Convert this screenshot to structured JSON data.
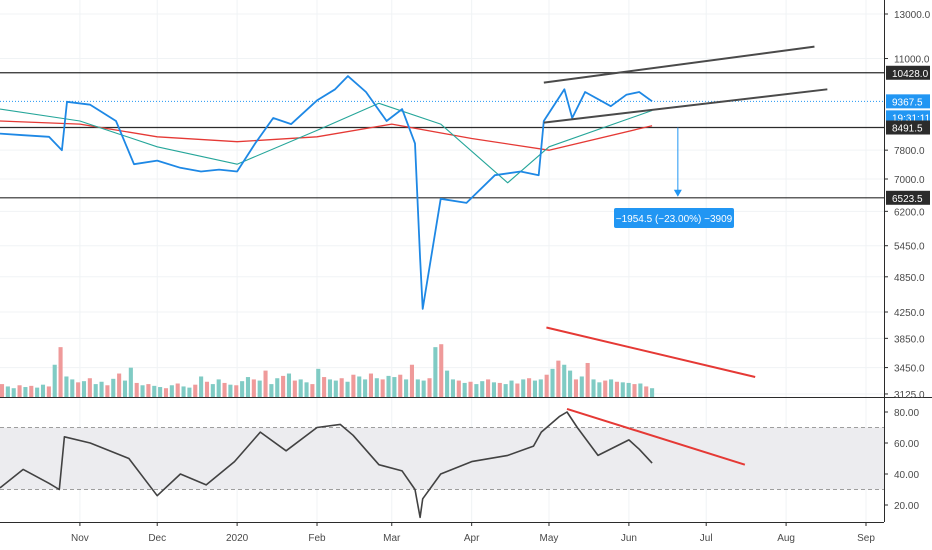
{
  "chart_data": [
    {
      "type": "line",
      "title": "",
      "price_axis": {
        "scale": "log",
        "tick_labels": [
          "13000.0",
          "11000.0",
          "9367.5",
          "8491.5",
          "7800.0",
          "7000.0",
          "6523.5",
          "6200.0",
          "5450.0",
          "4850.0",
          "4250.0",
          "3850.0",
          "3450.0",
          "3125.0"
        ],
        "ticks": [
          13000,
          11000,
          7800,
          7000,
          6200,
          5450,
          4850,
          4250,
          3850,
          3450,
          3125
        ],
        "range": [
          3125,
          13500
        ]
      },
      "time_axis": {
        "labels": [
          "Nov",
          "Dec",
          "2020",
          "Feb",
          "Mar",
          "Apr",
          "May",
          "Jun",
          "Jul",
          "Aug",
          "Sep"
        ]
      },
      "price_tags": {
        "resistance": "10428.0",
        "last": "9367.5",
        "countdown": "19:31:11",
        "support_mid": "8491.5",
        "support_low": "6523.5"
      },
      "horizontal_levels": [
        10428.0,
        8491.5,
        6523.5
      ],
      "series": [
        {
          "role": "price",
          "color": "#1e88e5",
          "x": [
            "2019-10-01",
            "2019-10-10",
            "2019-10-20",
            "2019-10-25",
            "2019-10-27",
            "2019-11-05",
            "2019-11-15",
            "2019-11-22",
            "2019-12-01",
            "2019-12-10",
            "2019-12-18",
            "2019-12-25",
            "2020-01-01",
            "2020-01-08",
            "2020-01-15",
            "2020-01-22",
            "2020-02-01",
            "2020-02-08",
            "2020-02-13",
            "2020-02-20",
            "2020-02-28",
            "2020-03-05",
            "2020-03-10",
            "2020-03-12",
            "2020-03-13",
            "2020-03-20",
            "2020-03-30",
            "2020-04-10",
            "2020-04-20",
            "2020-04-27",
            "2020-04-29",
            "2020-05-07",
            "2020-05-10",
            "2020-05-15",
            "2020-05-25",
            "2020-05-31",
            "2020-06-05",
            "2020-06-10"
          ],
          "values": [
            8300,
            8250,
            8200,
            7800,
            9350,
            9250,
            8700,
            7400,
            7500,
            7300,
            7200,
            7250,
            7200,
            8000,
            8800,
            8600,
            9400,
            9800,
            10300,
            9700,
            8700,
            9100,
            8000,
            5200,
            4300,
            6500,
            6400,
            7100,
            7200,
            7100,
            8700,
            9800,
            8800,
            9700,
            9200,
            9600,
            9700,
            9367.5
          ]
        },
        {
          "role": "moving-average-short",
          "color": "#26a69a",
          "x": [
            "2019-10-01",
            "2019-11-01",
            "2019-12-01",
            "2020-01-01",
            "2020-02-01",
            "2020-02-25",
            "2020-03-20",
            "2020-04-15",
            "2020-05-01",
            "2020-06-10"
          ],
          "values": [
            9100,
            8700,
            7900,
            7400,
            8400,
            9300,
            8600,
            6900,
            7900,
            9050
          ]
        },
        {
          "role": "moving-average-long",
          "color": "#e53935",
          "x": [
            "2019-10-01",
            "2019-11-01",
            "2019-12-01",
            "2020-01-01",
            "2020-02-01",
            "2020-03-01",
            "2020-04-01",
            "2020-05-01",
            "2020-06-10"
          ],
          "values": [
            8700,
            8600,
            8200,
            8050,
            8200,
            8600,
            8150,
            7800,
            8550
          ]
        }
      ],
      "volume": {
        "axis_top": 3850,
        "values": [
          0.22,
          0.18,
          0.15,
          0.2,
          0.17,
          0.19,
          0.16,
          0.21,
          0.18,
          0.55,
          0.85,
          0.35,
          0.3,
          0.25,
          0.27,
          0.32,
          0.22,
          0.26,
          0.2,
          0.31,
          0.4,
          0.28,
          0.5,
          0.24,
          0.2,
          0.22,
          0.19,
          0.17,
          0.15,
          0.2,
          0.23,
          0.18,
          0.16,
          0.21,
          0.35,
          0.26,
          0.22,
          0.3,
          0.24,
          0.21,
          0.2,
          0.27,
          0.34,
          0.3,
          0.28,
          0.45,
          0.22,
          0.32,
          0.36,
          0.4,
          0.28,
          0.3,
          0.25,
          0.22,
          0.48,
          0.34,
          0.3,
          0.28,
          0.32,
          0.26,
          0.38,
          0.35,
          0.3,
          0.4,
          0.32,
          0.3,
          0.36,
          0.34,
          0.38,
          0.3,
          0.55,
          0.3,
          0.28,
          0.32,
          0.85,
          0.9,
          0.45,
          0.3,
          0.28,
          0.24,
          0.26,
          0.22,
          0.27,
          0.3,
          0.25,
          0.24,
          0.22,
          0.28,
          0.23,
          0.3,
          0.32,
          0.28,
          0.3,
          0.38,
          0.48,
          0.62,
          0.55,
          0.45,
          0.3,
          0.35,
          0.58,
          0.3,
          0.25,
          0.28,
          0.3,
          0.26,
          0.25,
          0.24,
          0.22,
          0.23,
          0.18,
          0.15
        ]
      }
    },
    {
      "type": "line",
      "title": "",
      "oscillator_axis": {
        "tick_labels": [
          "80.00",
          "60.00",
          "40.00",
          "20.00"
        ],
        "ticks": [
          80,
          60,
          40,
          20
        ],
        "range": [
          12,
          88
        ],
        "band": [
          30,
          70
        ]
      },
      "series": [
        {
          "role": "oscillator",
          "color": "#424242",
          "x": [
            "2019-10-01",
            "2019-10-10",
            "2019-10-20",
            "2019-10-24",
            "2019-10-26",
            "2019-11-05",
            "2019-11-20",
            "2019-12-01",
            "2019-12-10",
            "2019-12-20",
            "2019-12-31",
            "2020-01-10",
            "2020-01-20",
            "2020-02-01",
            "2020-02-10",
            "2020-02-15",
            "2020-02-25",
            "2020-03-05",
            "2020-03-10",
            "2020-03-12",
            "2020-03-13",
            "2020-03-20",
            "2020-04-01",
            "2020-04-15",
            "2020-04-25",
            "2020-04-28",
            "2020-05-05",
            "2020-05-08",
            "2020-05-12",
            "2020-05-20",
            "2020-06-01",
            "2020-06-05",
            "2020-06-10"
          ],
          "values": [
            31,
            43,
            34,
            30,
            64,
            60,
            50,
            26,
            40,
            33,
            48,
            67,
            55,
            70,
            72,
            65,
            46,
            42,
            30,
            12,
            24,
            40,
            48,
            52,
            58,
            67,
            77,
            80,
            70,
            52,
            62,
            56,
            47
          ]
        }
      ]
    }
  ],
  "measure": {
    "label": "−1954.5 (−23.00%) −3909"
  },
  "colors": {
    "trendline": "#4a4a4a",
    "divergence": "#e53935",
    "measure_box": "#2196f3",
    "vol_up": "#80cbc4",
    "vol_down": "#ef9a9a"
  }
}
